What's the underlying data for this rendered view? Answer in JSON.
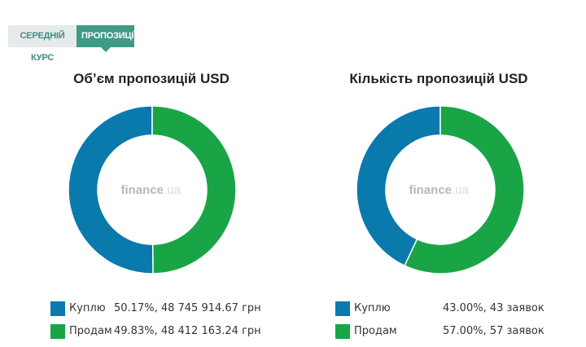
{
  "tabs": [
    {
      "label": "СЕРЕДНІЙ КУРС",
      "active": false
    },
    {
      "label": "ПРОПОЗИЦІЇ",
      "active": true
    }
  ],
  "watermark": {
    "brand": "finance",
    "suffix": ".ua"
  },
  "colors": {
    "buy": "#0a7aad",
    "sell": "#19a545"
  },
  "chart_data": [
    {
      "type": "pie",
      "title": "Обʼєм пропозицій USD",
      "categories": [
        "Куплю",
        "Продам"
      ],
      "values": [
        50.17,
        49.83
      ],
      "value_texts": [
        "50.17%, 48 745 914.67 грн",
        "49.83%, 48 412 163.24 грн"
      ],
      "legend_position": "bottom"
    },
    {
      "type": "pie",
      "title": "Кількість пропозицій USD",
      "categories": [
        "Куплю",
        "Продам"
      ],
      "values": [
        43.0,
        57.0
      ],
      "value_texts": [
        "43.00%, 43 заявок",
        "57.00%, 57 заявок"
      ],
      "legend_position": "bottom"
    }
  ]
}
